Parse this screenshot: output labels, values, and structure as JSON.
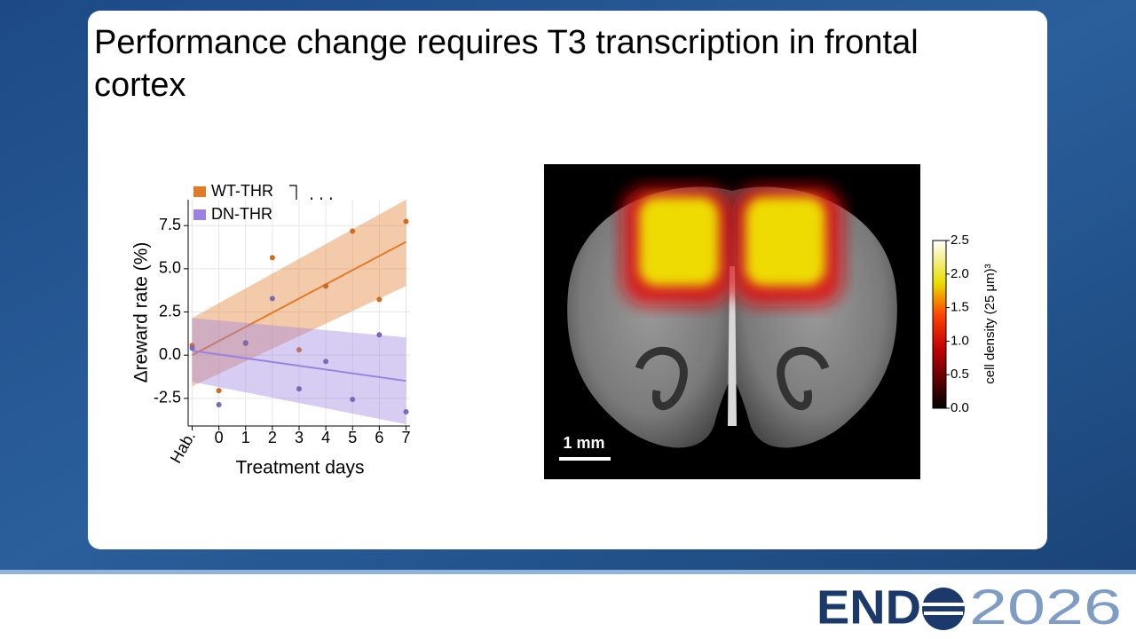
{
  "title": "Performance change requires T3 transcription in frontal cortex",
  "chart_data": {
    "type": "scatter",
    "ylabel": "Δreward rate (%)",
    "xlabel": "Treatment days",
    "annotation": "***",
    "xlim": [
      -1.15,
      7.15
    ],
    "ylim": [
      -4.1,
      9.0
    ],
    "xticks": [
      {
        "value": -1,
        "label": "Hab."
      },
      0,
      1,
      2,
      3,
      4,
      5,
      6,
      7
    ],
    "yticks": [
      -2.5,
      {
        "value": 0,
        "label": "0.0"
      },
      2.5,
      {
        "value": 5,
        "label": "5.0"
      },
      7.5
    ],
    "grid": true,
    "legend": "top-left",
    "series": [
      {
        "name": "WT-THR",
        "color": "#e07b2a",
        "point_color": "#cf6a22",
        "x": [
          -1,
          0,
          1,
          2,
          3,
          4,
          5,
          6,
          7
        ],
        "values": [
          0.56,
          -2.05,
          0.67,
          5.64,
          0.31,
          4.0,
          7.18,
          3.23,
          7.74
        ],
        "fit": {
          "x": [
            -1,
            7
          ],
          "values": [
            0,
            6.56
          ],
          "lower": [
            -1.8,
            4.0
          ],
          "upper": [
            2.15,
            9.0
          ]
        }
      },
      {
        "name": "DN-THR",
        "color": "#9b82e0",
        "point_color": "#7a68b8",
        "x": [
          -1,
          0,
          1,
          2,
          3,
          4,
          5,
          6,
          7
        ],
        "values": [
          0.41,
          -2.87,
          0.72,
          3.28,
          -1.95,
          -0.36,
          -2.56,
          1.18,
          -3.28
        ],
        "fit": {
          "x": [
            -1,
            7
          ],
          "values": [
            0.26,
            -1.49
          ],
          "lower": [
            -1.54,
            -4.0
          ],
          "upper": [
            2.15,
            1.03
          ]
        }
      }
    ]
  },
  "brain_panel": {
    "scale_bar": "1 mm",
    "colorbar": {
      "label": "cell density (25 μm)³",
      "lim": [
        0,
        2.5
      ],
      "ticks": [
        {
          "value": 0,
          "label": "0.0"
        },
        {
          "value": 0.5,
          "label": "0.5"
        },
        {
          "value": 1,
          "label": "1.0"
        },
        {
          "value": 1.5,
          "label": "1.5"
        },
        {
          "value": 2,
          "label": "2.0"
        },
        {
          "value": 2.5,
          "label": "2.5"
        }
      ]
    }
  },
  "logo": {
    "left": "END",
    "right": "2026"
  }
}
